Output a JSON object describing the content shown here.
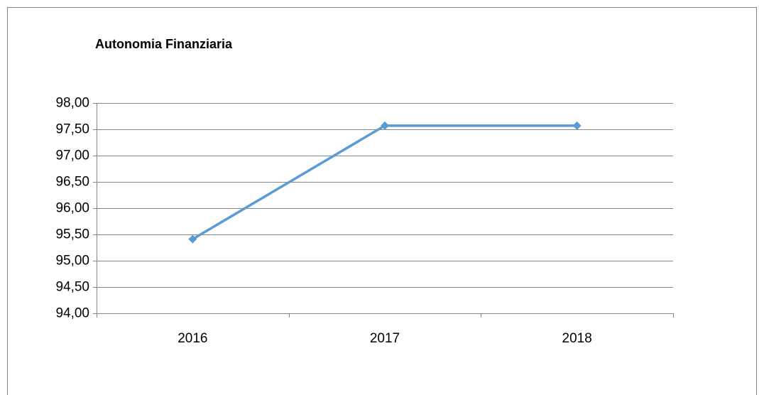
{
  "chart_data": {
    "type": "line",
    "title": "Autonomia Finanziaria",
    "categories": [
      "2016",
      "2017",
      "2018"
    ],
    "series": [
      {
        "name": "Autonomia Finanziaria",
        "color": "#5b9bd5",
        "values": [
          95.41,
          97.57,
          97.57
        ]
      }
    ],
    "ylim": [
      94,
      98
    ],
    "yticks": [
      {
        "value": 94,
        "label": "94,00"
      },
      {
        "value": 94.5,
        "label": "94,50"
      },
      {
        "value": 95,
        "label": "95,00"
      },
      {
        "value": 95.5,
        "label": "95,50"
      },
      {
        "value": 96,
        "label": "96,00"
      },
      {
        "value": 96.5,
        "label": "96,50"
      },
      {
        "value": 97,
        "label": "97,00"
      },
      {
        "value": 97.5,
        "label": "97,50"
      },
      {
        "value": 98,
        "label": "98,00"
      }
    ],
    "grid": true
  }
}
